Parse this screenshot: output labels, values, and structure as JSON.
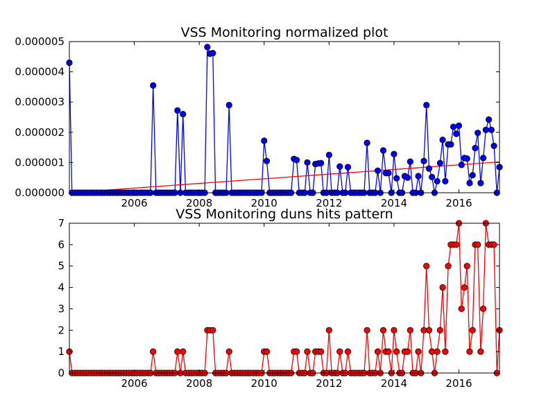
{
  "chart_data": [
    {
      "type": "line",
      "title": "VSS Monitoring normalized plot",
      "xlabel": "",
      "ylabel": "",
      "xlim": [
        2004.0,
        2017.25
      ],
      "ylim": [
        0,
        5e-06
      ],
      "grid": false,
      "x_ticks": [
        2006,
        2008,
        2010,
        2012,
        2014,
        2016
      ],
      "x_tick_labels": [
        "2006",
        "2008",
        "2010",
        "2012",
        "2014",
        "2016"
      ],
      "y_ticks": [
        0,
        1e-06,
        2e-06,
        3e-06,
        4e-06,
        5e-06
      ],
      "y_tick_labels": [
        "0.000000",
        "0.000001",
        "0.000002",
        "0.000003",
        "0.000004",
        "0.000005"
      ],
      "series": [
        {
          "color": "#0000ff",
          "marker": "circle",
          "x": [
            2004.0,
            2004.08,
            2004.17,
            2004.25,
            2004.33,
            2004.42,
            2004.5,
            2004.58,
            2004.67,
            2004.75,
            2004.83,
            2004.92,
            2005.0,
            2005.08,
            2005.17,
            2005.25,
            2005.33,
            2005.42,
            2005.5,
            2005.58,
            2005.67,
            2005.75,
            2005.83,
            2005.92,
            2006.0,
            2006.08,
            2006.17,
            2006.25,
            2006.33,
            2006.42,
            2006.5,
            2006.58,
            2006.67,
            2006.75,
            2006.83,
            2006.92,
            2007.0,
            2007.08,
            2007.17,
            2007.25,
            2007.33,
            2007.42,
            2007.5,
            2007.58,
            2007.67,
            2007.75,
            2007.83,
            2007.92,
            2008.0,
            2008.08,
            2008.17,
            2008.25,
            2008.33,
            2008.42,
            2008.5,
            2008.58,
            2008.67,
            2008.75,
            2008.83,
            2008.92,
            2009.0,
            2009.08,
            2009.17,
            2009.25,
            2009.33,
            2009.42,
            2009.5,
            2009.58,
            2009.67,
            2009.75,
            2009.83,
            2009.92,
            2010.0,
            2010.08,
            2010.17,
            2010.25,
            2010.33,
            2010.42,
            2010.5,
            2010.58,
            2010.67,
            2010.75,
            2010.83,
            2010.92,
            2011.0,
            2011.08,
            2011.17,
            2011.25,
            2011.33,
            2011.42,
            2011.5,
            2011.58,
            2011.67,
            2011.75,
            2011.83,
            2011.92,
            2012.0,
            2012.08,
            2012.17,
            2012.25,
            2012.33,
            2012.42,
            2012.5,
            2012.58,
            2012.67,
            2012.75,
            2012.83,
            2012.92,
            2013.0,
            2013.08,
            2013.17,
            2013.25,
            2013.33,
            2013.42,
            2013.5,
            2013.58,
            2013.67,
            2013.75,
            2013.83,
            2013.92,
            2014.0,
            2014.08,
            2014.17,
            2014.25,
            2014.33,
            2014.42,
            2014.5,
            2014.58,
            2014.67,
            2014.75,
            2014.83,
            2014.92,
            2015.0,
            2015.08,
            2015.17,
            2015.25,
            2015.33,
            2015.42,
            2015.5,
            2015.58,
            2015.67,
            2015.75,
            2015.83,
            2015.92,
            2016.0,
            2016.08,
            2016.17,
            2016.25,
            2016.33,
            2016.42,
            2016.5,
            2016.58,
            2016.67,
            2016.75,
            2016.83,
            2016.92,
            2017.0,
            2017.08,
            2017.17,
            2017.25
          ],
          "y": [
            4.3e-06,
            0,
            0,
            0,
            0,
            0,
            0,
            0,
            0,
            0,
            0,
            0,
            0,
            0,
            0,
            0,
            0,
            0,
            0,
            0,
            0,
            0,
            0,
            0,
            0,
            0,
            0,
            0,
            0,
            0,
            0,
            3.55e-06,
            0,
            0,
            0,
            0,
            0,
            0,
            0,
            0,
            2.72e-06,
            0,
            2.6e-06,
            0,
            0,
            0,
            0,
            0,
            0,
            0,
            0,
            4.82e-06,
            4.6e-06,
            4.62e-06,
            0,
            0,
            0,
            0,
            0,
            2.9e-06,
            0,
            0,
            0,
            0,
            0,
            0,
            0,
            0,
            0,
            0,
            0,
            0,
            1.72e-06,
            1.05e-06,
            0,
            0,
            0,
            0,
            0,
            0,
            0,
            0,
            0,
            1.12e-06,
            1.08e-06,
            0,
            0,
            0,
            1e-06,
            0,
            0,
            9.5e-07,
            9.7e-07,
            9.8e-07,
            0,
            0,
            1.25e-06,
            0,
            0,
            0,
            8.7e-07,
            0,
            0,
            8.5e-07,
            0,
            0,
            0,
            0,
            0,
            0,
            1.65e-06,
            0,
            0,
            0,
            7.3e-07,
            0,
            1.4e-06,
            6.5e-07,
            6.5e-07,
            0,
            1.28e-06,
            4.8e-07,
            0,
            0,
            5.5e-07,
            5e-07,
            1.03e-06,
            0,
            0,
            5.5e-07,
            0,
            1.05e-06,
            2.9e-06,
            8e-07,
            5.2e-07,
            0,
            3.8e-07,
            9.8e-07,
            1.75e-06,
            3.8e-07,
            1.6e-06,
            1.6e-06,
            2.18e-06,
            1.95e-06,
            2.22e-06,
            9.2e-07,
            1.15e-06,
            1.13e-06,
            3.2e-07,
            5.8e-07,
            1.48e-06,
            1.98e-06,
            3.2e-07,
            1.15e-06,
            2.08e-06,
            2.42e-06,
            2.08e-06,
            1.55e-06,
            0,
            8.5e-07
          ]
        },
        {
          "color": "#ff0000",
          "marker": "none",
          "x": [
            2004.0,
            2017.25
          ],
          "y": [
            0,
            1.02e-06
          ]
        }
      ]
    },
    {
      "type": "line",
      "title": "VSS Monitoring duns hits pattern",
      "xlabel": "",
      "ylabel": "",
      "xlim": [
        2004.0,
        2017.25
      ],
      "ylim": [
        0,
        7
      ],
      "grid": false,
      "x_ticks": [
        2006,
        2008,
        2010,
        2012,
        2014,
        2016
      ],
      "x_tick_labels": [
        "2006",
        "2008",
        "2010",
        "2012",
        "2014",
        "2016"
      ],
      "y_ticks": [
        0,
        1,
        2,
        3,
        4,
        5,
        6,
        7
      ],
      "y_tick_labels": [
        "0",
        "1",
        "2",
        "3",
        "4",
        "5",
        "6",
        "7"
      ],
      "series": [
        {
          "color": "#ff0000",
          "marker": "circle",
          "x": [
            2004.0,
            2004.08,
            2004.17,
            2004.25,
            2004.33,
            2004.42,
            2004.5,
            2004.58,
            2004.67,
            2004.75,
            2004.83,
            2004.92,
            2005.0,
            2005.08,
            2005.17,
            2005.25,
            2005.33,
            2005.42,
            2005.5,
            2005.58,
            2005.67,
            2005.75,
            2005.83,
            2005.92,
            2006.0,
            2006.08,
            2006.17,
            2006.25,
            2006.33,
            2006.42,
            2006.5,
            2006.58,
            2006.67,
            2006.75,
            2006.83,
            2006.92,
            2007.0,
            2007.08,
            2007.17,
            2007.25,
            2007.33,
            2007.42,
            2007.5,
            2007.58,
            2007.67,
            2007.75,
            2007.83,
            2007.92,
            2008.0,
            2008.08,
            2008.17,
            2008.25,
            2008.33,
            2008.42,
            2008.5,
            2008.58,
            2008.67,
            2008.75,
            2008.83,
            2008.92,
            2009.0,
            2009.08,
            2009.17,
            2009.25,
            2009.33,
            2009.42,
            2009.5,
            2009.58,
            2009.67,
            2009.75,
            2009.83,
            2009.92,
            2010.0,
            2010.08,
            2010.17,
            2010.25,
            2010.33,
            2010.42,
            2010.5,
            2010.58,
            2010.67,
            2010.75,
            2010.83,
            2010.92,
            2011.0,
            2011.08,
            2011.17,
            2011.25,
            2011.33,
            2011.42,
            2011.5,
            2011.58,
            2011.67,
            2011.75,
            2011.83,
            2011.92,
            2012.0,
            2012.08,
            2012.17,
            2012.25,
            2012.33,
            2012.42,
            2012.5,
            2012.58,
            2012.67,
            2012.75,
            2012.83,
            2012.92,
            2013.0,
            2013.08,
            2013.17,
            2013.25,
            2013.33,
            2013.42,
            2013.5,
            2013.58,
            2013.67,
            2013.75,
            2013.83,
            2013.92,
            2014.0,
            2014.08,
            2014.17,
            2014.25,
            2014.33,
            2014.42,
            2014.5,
            2014.58,
            2014.67,
            2014.75,
            2014.83,
            2014.92,
            2015.0,
            2015.08,
            2015.17,
            2015.25,
            2015.33,
            2015.42,
            2015.5,
            2015.58,
            2015.67,
            2015.75,
            2015.83,
            2015.92,
            2016.0,
            2016.08,
            2016.17,
            2016.25,
            2016.33,
            2016.42,
            2016.5,
            2016.58,
            2016.67,
            2016.75,
            2016.83,
            2016.92,
            2017.0,
            2017.08,
            2017.17,
            2017.25
          ],
          "y": [
            1,
            0,
            0,
            0,
            0,
            0,
            0,
            0,
            0,
            0,
            0,
            0,
            0,
            0,
            0,
            0,
            0,
            0,
            0,
            0,
            0,
            0,
            0,
            0,
            0,
            0,
            0,
            0,
            0,
            0,
            0,
            1,
            0,
            0,
            0,
            0,
            0,
            0,
            0,
            0,
            1,
            0,
            1,
            0,
            0,
            0,
            0,
            0,
            0,
            0,
            0,
            2,
            2,
            2,
            0,
            0,
            0,
            0,
            0,
            1,
            0,
            0,
            0,
            0,
            0,
            0,
            0,
            0,
            0,
            0,
            0,
            0,
            1,
            1,
            0,
            0,
            0,
            0,
            0,
            0,
            0,
            0,
            0,
            1,
            1,
            0,
            0,
            0,
            1,
            0,
            0,
            1,
            1,
            1,
            0,
            0,
            2,
            0,
            0,
            0,
            1,
            0,
            0,
            1,
            0,
            0,
            0,
            0,
            0,
            0,
            2,
            0,
            0,
            0,
            1,
            0,
            2,
            1,
            1,
            0,
            2,
            1,
            0,
            0,
            1,
            1,
            2,
            0,
            0,
            1,
            0,
            2,
            5,
            2,
            1,
            0,
            1,
            2,
            4,
            1,
            5,
            6,
            6,
            6,
            7,
            3,
            4,
            5,
            1,
            2,
            6,
            6,
            1,
            3,
            7,
            6,
            6,
            6,
            0,
            2
          ]
        }
      ]
    }
  ]
}
